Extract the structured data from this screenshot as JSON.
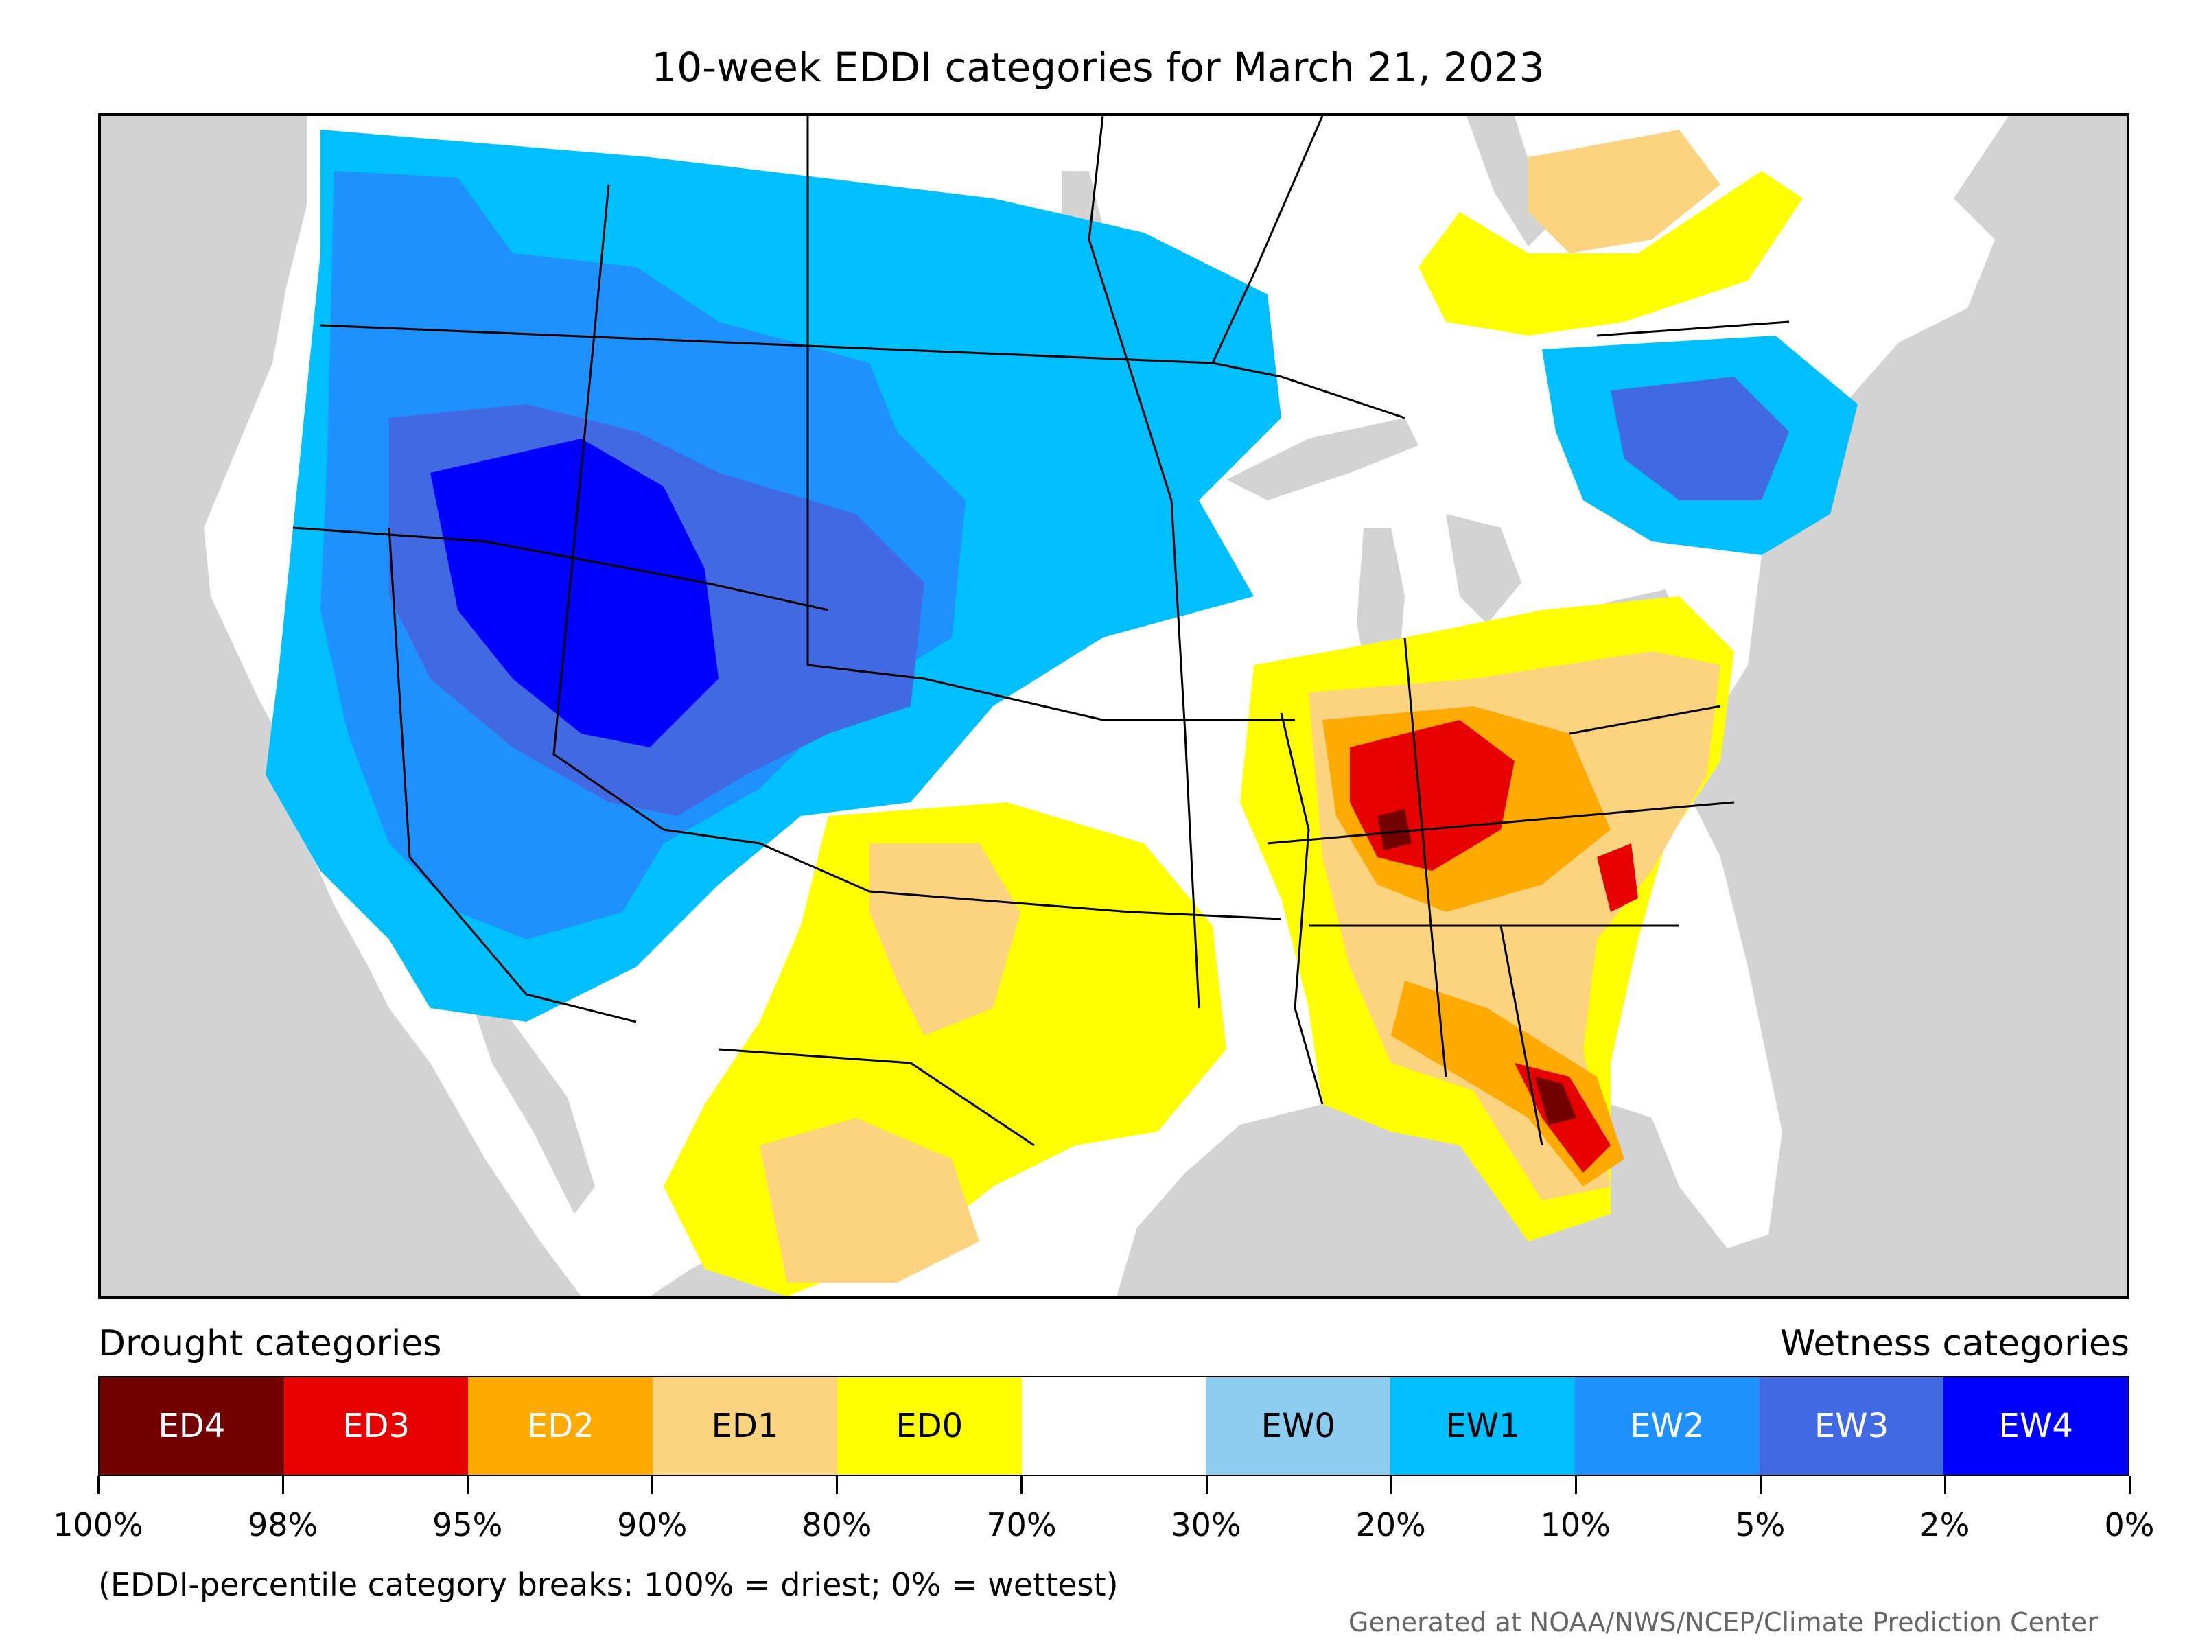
{
  "title": "10-week EDDI categories for March 21, 2023",
  "legend": {
    "drought_heading": "Drought categories",
    "wetness_heading": "Wetness categories",
    "categories": [
      {
        "label": "ED4",
        "color": "#730000",
        "text_color": "#ffffff"
      },
      {
        "label": "ED3",
        "color": "#e60000",
        "text_color": "#ffffff"
      },
      {
        "label": "ED2",
        "color": "#ffaa00",
        "text_color": "#ffffff"
      },
      {
        "label": "ED1",
        "color": "#fcd37f",
        "text_color": "#000000"
      },
      {
        "label": "ED0",
        "color": "#ffff00",
        "text_color": "#000000"
      },
      {
        "label": "",
        "color": "#ffffff",
        "text_color": "#000000"
      },
      {
        "label": "EW0",
        "color": "#8ccdef",
        "text_color": "#000000"
      },
      {
        "label": "EW1",
        "color": "#00bfff",
        "text_color": "#000000"
      },
      {
        "label": "EW2",
        "color": "#1e90ff",
        "text_color": "#ffffff"
      },
      {
        "label": "EW3",
        "color": "#4169e1",
        "text_color": "#ffffff"
      },
      {
        "label": "EW4",
        "color": "#0000ff",
        "text_color": "#ffffff"
      }
    ],
    "tick_labels": [
      "100%",
      "98%",
      "95%",
      "90%",
      "80%",
      "70%",
      "30%",
      "20%",
      "10%",
      "5%",
      "2%",
      "0%"
    ]
  },
  "note": "(EDDI-percentile category breaks: 100% = driest; 0% = wettest)",
  "credit": "Generated at NOAA/NWS/NCEP/Climate Prediction Center",
  "map": {
    "ocean_color": "#d3d3d3",
    "land_color": "#ffffff",
    "border_color": "#000000"
  }
}
